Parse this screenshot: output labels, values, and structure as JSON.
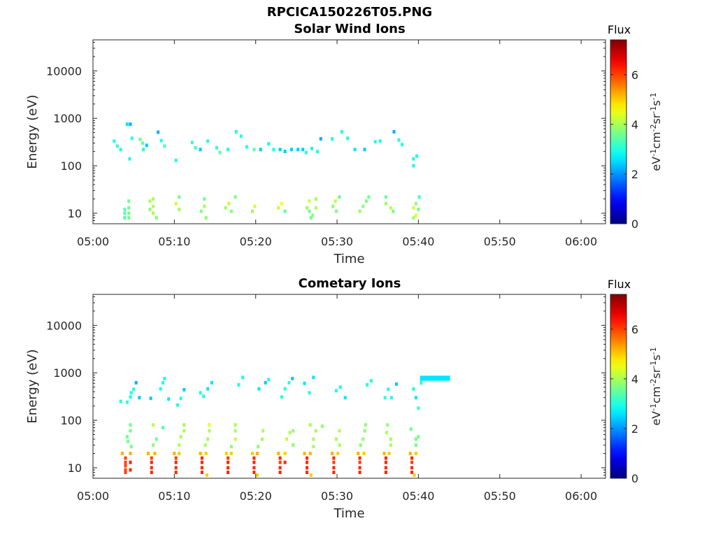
{
  "figure": {
    "title": "RPCICA150226T05.PNG"
  },
  "chart_data": [
    {
      "type": "heatmap",
      "title": "Solar Wind Ions",
      "xlabel": "Time",
      "ylabel": "Energy (eV)",
      "x_ticks": [
        "05:00",
        "05:10",
        "05:20",
        "05:30",
        "05:40",
        "05:50",
        "06:00"
      ],
      "xlim_minutes": [
        0,
        63
      ],
      "y_scale": "log",
      "y_ticks": [
        "10",
        "100",
        "1000",
        "10000"
      ],
      "ylim": [
        6,
        45000
      ],
      "colorbar": {
        "title": "Flux",
        "label": "eV-1cm-2sr-1s-1",
        "ticks": [
          "0",
          "2",
          "4",
          "6"
        ],
        "range": [
          0,
          7.4
        ],
        "colormap": "jet"
      },
      "grid": false,
      "cells": [
        [
          4.2,
          750,
          2.6
        ],
        [
          4.6,
          750,
          2.2
        ],
        [
          2.6,
          330,
          3.0
        ],
        [
          3.0,
          260,
          3.1
        ],
        [
          3.4,
          220,
          3.0
        ],
        [
          4.5,
          140,
          3.0
        ],
        [
          4.8,
          380,
          3.0
        ],
        [
          5.8,
          360,
          3.6
        ],
        [
          6.1,
          300,
          3.5
        ],
        [
          6.2,
          220,
          3.0
        ],
        [
          6.6,
          270,
          2.4
        ],
        [
          8.0,
          510,
          2.2
        ],
        [
          8.4,
          340,
          3.0
        ],
        [
          8.8,
          260,
          3.3
        ],
        [
          10.2,
          130,
          3.0
        ],
        [
          12.2,
          310,
          3.2
        ],
        [
          12.6,
          240,
          3.1
        ],
        [
          13.2,
          220,
          2.4
        ],
        [
          14.1,
          330,
          3.0
        ],
        [
          15.2,
          240,
          3.1
        ],
        [
          15.6,
          190,
          3.5
        ],
        [
          16.6,
          220,
          3.0
        ],
        [
          17.6,
          520,
          3.0
        ],
        [
          18.2,
          420,
          3.0
        ],
        [
          18.9,
          250,
          3.0
        ],
        [
          19.8,
          220,
          3.4
        ],
        [
          20.6,
          220,
          2.4
        ],
        [
          21.6,
          290,
          2.8
        ],
        [
          22.2,
          220,
          3.0
        ],
        [
          23.0,
          220,
          2.4
        ],
        [
          23.6,
          200,
          2.4
        ],
        [
          24.4,
          220,
          2.4
        ],
        [
          25.2,
          220,
          2.4
        ],
        [
          25.8,
          220,
          2.4
        ],
        [
          26.2,
          190,
          3.0
        ],
        [
          26.9,
          230,
          2.8
        ],
        [
          27.6,
          200,
          3.0
        ],
        [
          28.0,
          370,
          2.2
        ],
        [
          29.4,
          370,
          3.0
        ],
        [
          30.6,
          520,
          3.0
        ],
        [
          31.3,
          380,
          3.0
        ],
        [
          32.2,
          220,
          2.6
        ],
        [
          33.4,
          220,
          2.4
        ],
        [
          34.7,
          320,
          3.0
        ],
        [
          35.3,
          330,
          3.0
        ],
        [
          37.0,
          520,
          2.2
        ],
        [
          37.6,
          350,
          3.1
        ],
        [
          38.0,
          280,
          3.0
        ],
        [
          39.4,
          140,
          3.0
        ],
        [
          39.4,
          100,
          2.8
        ],
        [
          39.8,
          160,
          3.0
        ],
        [
          3.9,
          8,
          3.4
        ],
        [
          3.9,
          10,
          3.4
        ],
        [
          3.9,
          12,
          3.4
        ],
        [
          4.4,
          8,
          3.6
        ],
        [
          4.4,
          10,
          3.6
        ],
        [
          4.4,
          13,
          3.6
        ],
        [
          4.4,
          18,
          3.6
        ],
        [
          7.0,
          12,
          3.8
        ],
        [
          7.0,
          18,
          4.0
        ],
        [
          7.4,
          14,
          4.0
        ],
        [
          7.4,
          20,
          4.0
        ],
        [
          7.4,
          10,
          4.0
        ],
        [
          7.8,
          8,
          3.7
        ],
        [
          10.2,
          16,
          4.3
        ],
        [
          10.6,
          12,
          3.9
        ],
        [
          10.6,
          22,
          3.6
        ],
        [
          13.3,
          11,
          3.7
        ],
        [
          13.7,
          14,
          4.0
        ],
        [
          13.9,
          8,
          3.8
        ],
        [
          13.7,
          20,
          3.6
        ],
        [
          16.3,
          13,
          3.9
        ],
        [
          16.7,
          16,
          4.2
        ],
        [
          17.0,
          11,
          3.7
        ],
        [
          17.5,
          22,
          3.7
        ],
        [
          19.6,
          11,
          3.9
        ],
        [
          19.9,
          14,
          4.3
        ],
        [
          22.8,
          13,
          4.2
        ],
        [
          23.2,
          16,
          4.6
        ],
        [
          23.6,
          11,
          3.5
        ],
        [
          26.3,
          13,
          3.9
        ],
        [
          26.6,
          11,
          3.6
        ],
        [
          26.6,
          18,
          4.3
        ],
        [
          27.0,
          9,
          3.8
        ],
        [
          27.4,
          13,
          4.0
        ],
        [
          27.4,
          20,
          4.0
        ],
        [
          26.8,
          8,
          3.6
        ],
        [
          29.5,
          14,
          3.8
        ],
        [
          29.8,
          18,
          4.2
        ],
        [
          29.9,
          11,
          3.7
        ],
        [
          30.3,
          22,
          3.5
        ],
        [
          32.8,
          11,
          3.9
        ],
        [
          33.2,
          14,
          3.8
        ],
        [
          33.6,
          18,
          3.7
        ],
        [
          33.9,
          22,
          3.6
        ],
        [
          36.0,
          16,
          3.9
        ],
        [
          36.0,
          22,
          3.5
        ],
        [
          36.6,
          13,
          4.2
        ],
        [
          36.9,
          11,
          3.6
        ],
        [
          39.4,
          13,
          4.3
        ],
        [
          39.7,
          16,
          3.8
        ],
        [
          39.7,
          9,
          4.4
        ],
        [
          40.1,
          22,
          3.2
        ],
        [
          39.4,
          8,
          3.9
        ],
        [
          40.0,
          12,
          3.6
        ]
      ]
    },
    {
      "type": "heatmap",
      "title": "Cometary Ions",
      "xlabel": "Time",
      "ylabel": "Energy (eV)",
      "x_ticks": [
        "05:00",
        "05:10",
        "05:20",
        "05:30",
        "05:40",
        "05:50",
        "06:00"
      ],
      "xlim_minutes": [
        0,
        63
      ],
      "y_scale": "log",
      "y_ticks": [
        "10",
        "100",
        "1000",
        "10000"
      ],
      "ylim": [
        6,
        45000
      ],
      "colorbar": {
        "title": "Flux",
        "label": "eV-1cm-2sr-1s-1",
        "ticks": [
          "0",
          "2",
          "4",
          "6"
        ],
        "range": [
          0,
          7.4
        ],
        "colormap": "jet"
      },
      "grid": false,
      "cells": [
        [
          3.4,
          250,
          3.0
        ],
        [
          4.2,
          240,
          3.0
        ],
        [
          4.6,
          310,
          3.0
        ],
        [
          4.7,
          380,
          3.0
        ],
        [
          5.0,
          450,
          3.0
        ],
        [
          5.3,
          620,
          2.2
        ],
        [
          5.7,
          300,
          2.4
        ],
        [
          7.1,
          290,
          2.4
        ],
        [
          8.3,
          460,
          3.0
        ],
        [
          8.6,
          620,
          3.0
        ],
        [
          8.8,
          760,
          3.0
        ],
        [
          9.3,
          280,
          2.6
        ],
        [
          10.4,
          210,
          3.0
        ],
        [
          10.8,
          290,
          3.0
        ],
        [
          11.2,
          440,
          2.4
        ],
        [
          13.2,
          380,
          3.0
        ],
        [
          13.6,
          320,
          3.0
        ],
        [
          14.1,
          460,
          2.6
        ],
        [
          14.6,
          620,
          2.6
        ],
        [
          17.9,
          560,
          3.0
        ],
        [
          18.4,
          800,
          3.0
        ],
        [
          20.4,
          460,
          2.6
        ],
        [
          21.2,
          620,
          2.4
        ],
        [
          21.6,
          720,
          3.0
        ],
        [
          23.2,
          310,
          3.0
        ],
        [
          23.6,
          460,
          3.0
        ],
        [
          24.1,
          620,
          3.0
        ],
        [
          24.5,
          760,
          2.4
        ],
        [
          26.0,
          600,
          2.6
        ],
        [
          26.6,
          380,
          3.0
        ],
        [
          27.1,
          800,
          2.6
        ],
        [
          29.9,
          420,
          3.0
        ],
        [
          30.4,
          500,
          3.0
        ],
        [
          31.0,
          300,
          2.6
        ],
        [
          33.7,
          560,
          3.0
        ],
        [
          34.2,
          680,
          3.0
        ],
        [
          35.9,
          300,
          3.0
        ],
        [
          36.3,
          450,
          3.0
        ],
        [
          36.7,
          300,
          3.0
        ],
        [
          37.3,
          580,
          2.4
        ],
        [
          39.4,
          460,
          3.0
        ],
        [
          39.7,
          300,
          2.6
        ],
        [
          40.0,
          180,
          3.2
        ],
        [
          4.2,
          45,
          3.6
        ],
        [
          4.6,
          60,
          3.6
        ],
        [
          4.6,
          80,
          3.6
        ],
        [
          4.3,
          36,
          3.6
        ],
        [
          4.7,
          28,
          3.6
        ],
        [
          7.4,
          30,
          3.8
        ],
        [
          7.4,
          80,
          4.1
        ],
        [
          7.8,
          40,
          3.6
        ],
        [
          8.6,
          70,
          3.4
        ],
        [
          10.6,
          30,
          4.0
        ],
        [
          10.8,
          45,
          4.0
        ],
        [
          11.2,
          80,
          4.0
        ],
        [
          11.2,
          60,
          4.0
        ],
        [
          13.8,
          30,
          4.0
        ],
        [
          14.1,
          40,
          4.0
        ],
        [
          14.3,
          60,
          4.0
        ],
        [
          14.3,
          80,
          4.5
        ],
        [
          17.0,
          28,
          3.8
        ],
        [
          17.5,
          40,
          4.2
        ],
        [
          17.5,
          60,
          4.0
        ],
        [
          17.5,
          80,
          4.0
        ],
        [
          20.3,
          28,
          3.8
        ],
        [
          20.8,
          40,
          4.0
        ],
        [
          20.9,
          60,
          4.0
        ],
        [
          23.8,
          40,
          4.2
        ],
        [
          24.2,
          55,
          4.0
        ],
        [
          24.6,
          60,
          3.8
        ],
        [
          24.6,
          30,
          3.8
        ],
        [
          26.7,
          80,
          4.0
        ],
        [
          27.1,
          40,
          4.0
        ],
        [
          27.1,
          28,
          4.0
        ],
        [
          27.4,
          60,
          4.0
        ],
        [
          28.2,
          75,
          3.8
        ],
        [
          29.9,
          40,
          4.0
        ],
        [
          30.3,
          60,
          4.0
        ],
        [
          30.3,
          30,
          4.0
        ],
        [
          32.9,
          30,
          3.8
        ],
        [
          33.2,
          40,
          3.8
        ],
        [
          33.4,
          60,
          3.8
        ],
        [
          33.5,
          80,
          3.8
        ],
        [
          36.1,
          55,
          4.0
        ],
        [
          36.6,
          40,
          4.0
        ],
        [
          36.6,
          30,
          4.0
        ],
        [
          36.2,
          80,
          3.8
        ],
        [
          39.1,
          65,
          3.6
        ],
        [
          39.7,
          40,
          3.6
        ],
        [
          39.7,
          30,
          3.6
        ],
        [
          40.0,
          45,
          3.6
        ],
        [
          3.6,
          20,
          5.2
        ],
        [
          4.0,
          16,
          6.0
        ],
        [
          4.0,
          13,
          6.0
        ],
        [
          4.0,
          11,
          6.0
        ],
        [
          4.0,
          9,
          6.0
        ],
        [
          4.0,
          8,
          6.0
        ],
        [
          4.6,
          13,
          6.2
        ],
        [
          4.6,
          9,
          6.2
        ],
        [
          4.6,
          20,
          5.2
        ],
        [
          6.8,
          20,
          5.2
        ],
        [
          7.2,
          16,
          6.0
        ],
        [
          7.2,
          13,
          6.2
        ],
        [
          7.2,
          10,
          6.2
        ],
        [
          7.2,
          8,
          6.2
        ],
        [
          7.6,
          20,
          5.2
        ],
        [
          10.0,
          20,
          5.2
        ],
        [
          10.2,
          16,
          6.0
        ],
        [
          10.2,
          13,
          6.2
        ],
        [
          10.2,
          10,
          6.2
        ],
        [
          10.2,
          8,
          6.2
        ],
        [
          10.6,
          20,
          5.0
        ],
        [
          13.2,
          20,
          5.2
        ],
        [
          13.4,
          16,
          6.2
        ],
        [
          13.4,
          13,
          6.2
        ],
        [
          13.4,
          10,
          6.2
        ],
        [
          13.4,
          8,
          6.2
        ],
        [
          13.9,
          20,
          5.0
        ],
        [
          14.0,
          7,
          5.0
        ],
        [
          16.4,
          20,
          5.0
        ],
        [
          16.6,
          16,
          6.0
        ],
        [
          16.6,
          13,
          6.2
        ],
        [
          16.6,
          10,
          6.2
        ],
        [
          16.6,
          8,
          6.2
        ],
        [
          17.0,
          20,
          5.0
        ],
        [
          19.6,
          20,
          5.0
        ],
        [
          19.8,
          16,
          6.2
        ],
        [
          19.8,
          13,
          6.2
        ],
        [
          19.8,
          10,
          6.2
        ],
        [
          19.8,
          8,
          6.2
        ],
        [
          20.2,
          20,
          5.2
        ],
        [
          20.2,
          7,
          5.0
        ],
        [
          22.8,
          20,
          5.2
        ],
        [
          23.0,
          16,
          6.2
        ],
        [
          23.0,
          13,
          6.0
        ],
        [
          23.0,
          10,
          6.2
        ],
        [
          23.0,
          8,
          6.2
        ],
        [
          23.6,
          20,
          5.0
        ],
        [
          23.6,
          13,
          6.2
        ],
        [
          26.0,
          20,
          5.2
        ],
        [
          26.3,
          16,
          6.2
        ],
        [
          26.3,
          13,
          6.2
        ],
        [
          26.3,
          10,
          6.2
        ],
        [
          26.3,
          8,
          6.2
        ],
        [
          26.7,
          20,
          5.2
        ],
        [
          26.8,
          7,
          5.0
        ],
        [
          29.4,
          20,
          5.2
        ],
        [
          29.6,
          16,
          6.2
        ],
        [
          29.6,
          13,
          6.0
        ],
        [
          29.6,
          10,
          6.2
        ],
        [
          29.6,
          8,
          6.2
        ],
        [
          30.1,
          20,
          5.0
        ],
        [
          32.6,
          20,
          5.2
        ],
        [
          32.8,
          16,
          6.2
        ],
        [
          32.8,
          13,
          6.0
        ],
        [
          32.8,
          10,
          6.2
        ],
        [
          32.8,
          8,
          6.2
        ],
        [
          33.3,
          20,
          5.0
        ],
        [
          35.8,
          20,
          5.2
        ],
        [
          36.0,
          16,
          6.2
        ],
        [
          36.0,
          13,
          6.2
        ],
        [
          36.0,
          10,
          6.2
        ],
        [
          36.0,
          8,
          6.2
        ],
        [
          36.4,
          20,
          5.0
        ],
        [
          39.0,
          20,
          5.2
        ],
        [
          39.2,
          16,
          6.2
        ],
        [
          39.2,
          13,
          6.0
        ],
        [
          39.2,
          10,
          6.2
        ],
        [
          39.2,
          8,
          6.2
        ],
        [
          39.7,
          20,
          5.0
        ],
        [
          39.5,
          7,
          5.0
        ]
      ],
      "bands": [
        {
          "x_start": 40.2,
          "x_end": 43.9,
          "e_low": 680,
          "e_high": 870,
          "value": 2.6
        },
        {
          "x_start": 40.2,
          "x_end": 40.5,
          "e_low": 560,
          "e_high": 680,
          "value": 3.0
        }
      ]
    }
  ]
}
